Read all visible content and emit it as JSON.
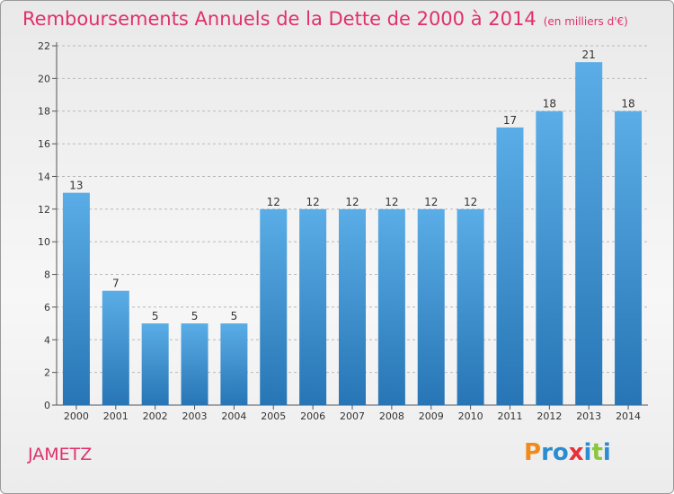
{
  "header": {
    "title": "Remboursements Annuels de la Dette de 2000 à 2014",
    "unit": "(en milliers d'€)"
  },
  "footer": {
    "commune": "JAMETZ",
    "logo_text": "Proxiti"
  },
  "colors": {
    "title": "#e0306c",
    "bar_top": "#5aade6",
    "bar_bottom": "#2775b5",
    "grid": "#b9b9b9",
    "logo_letters": [
      "#f08a1a",
      "#2c8ccf",
      "#2c8ccf",
      "#e8303a",
      "#2c8ccf",
      "#8cc63f",
      "#2c8ccf"
    ]
  },
  "chart_data": {
    "type": "bar",
    "title": "Remboursements Annuels de la Dette de 2000 à 2014",
    "subtitle": "(en milliers d'€)",
    "categories": [
      "2000",
      "2001",
      "2002",
      "2003",
      "2004",
      "2005",
      "2006",
      "2007",
      "2008",
      "2009",
      "2010",
      "2011",
      "2012",
      "2013",
      "2014"
    ],
    "values": [
      13,
      7,
      5,
      5,
      5,
      12,
      12,
      12,
      12,
      12,
      12,
      17,
      18,
      21,
      18
    ],
    "ylim": [
      0,
      22
    ],
    "yticks": [
      0,
      2,
      4,
      6,
      8,
      10,
      12,
      14,
      16,
      18,
      20,
      22
    ],
    "grid": "horizontal dashed",
    "legend": "none"
  }
}
